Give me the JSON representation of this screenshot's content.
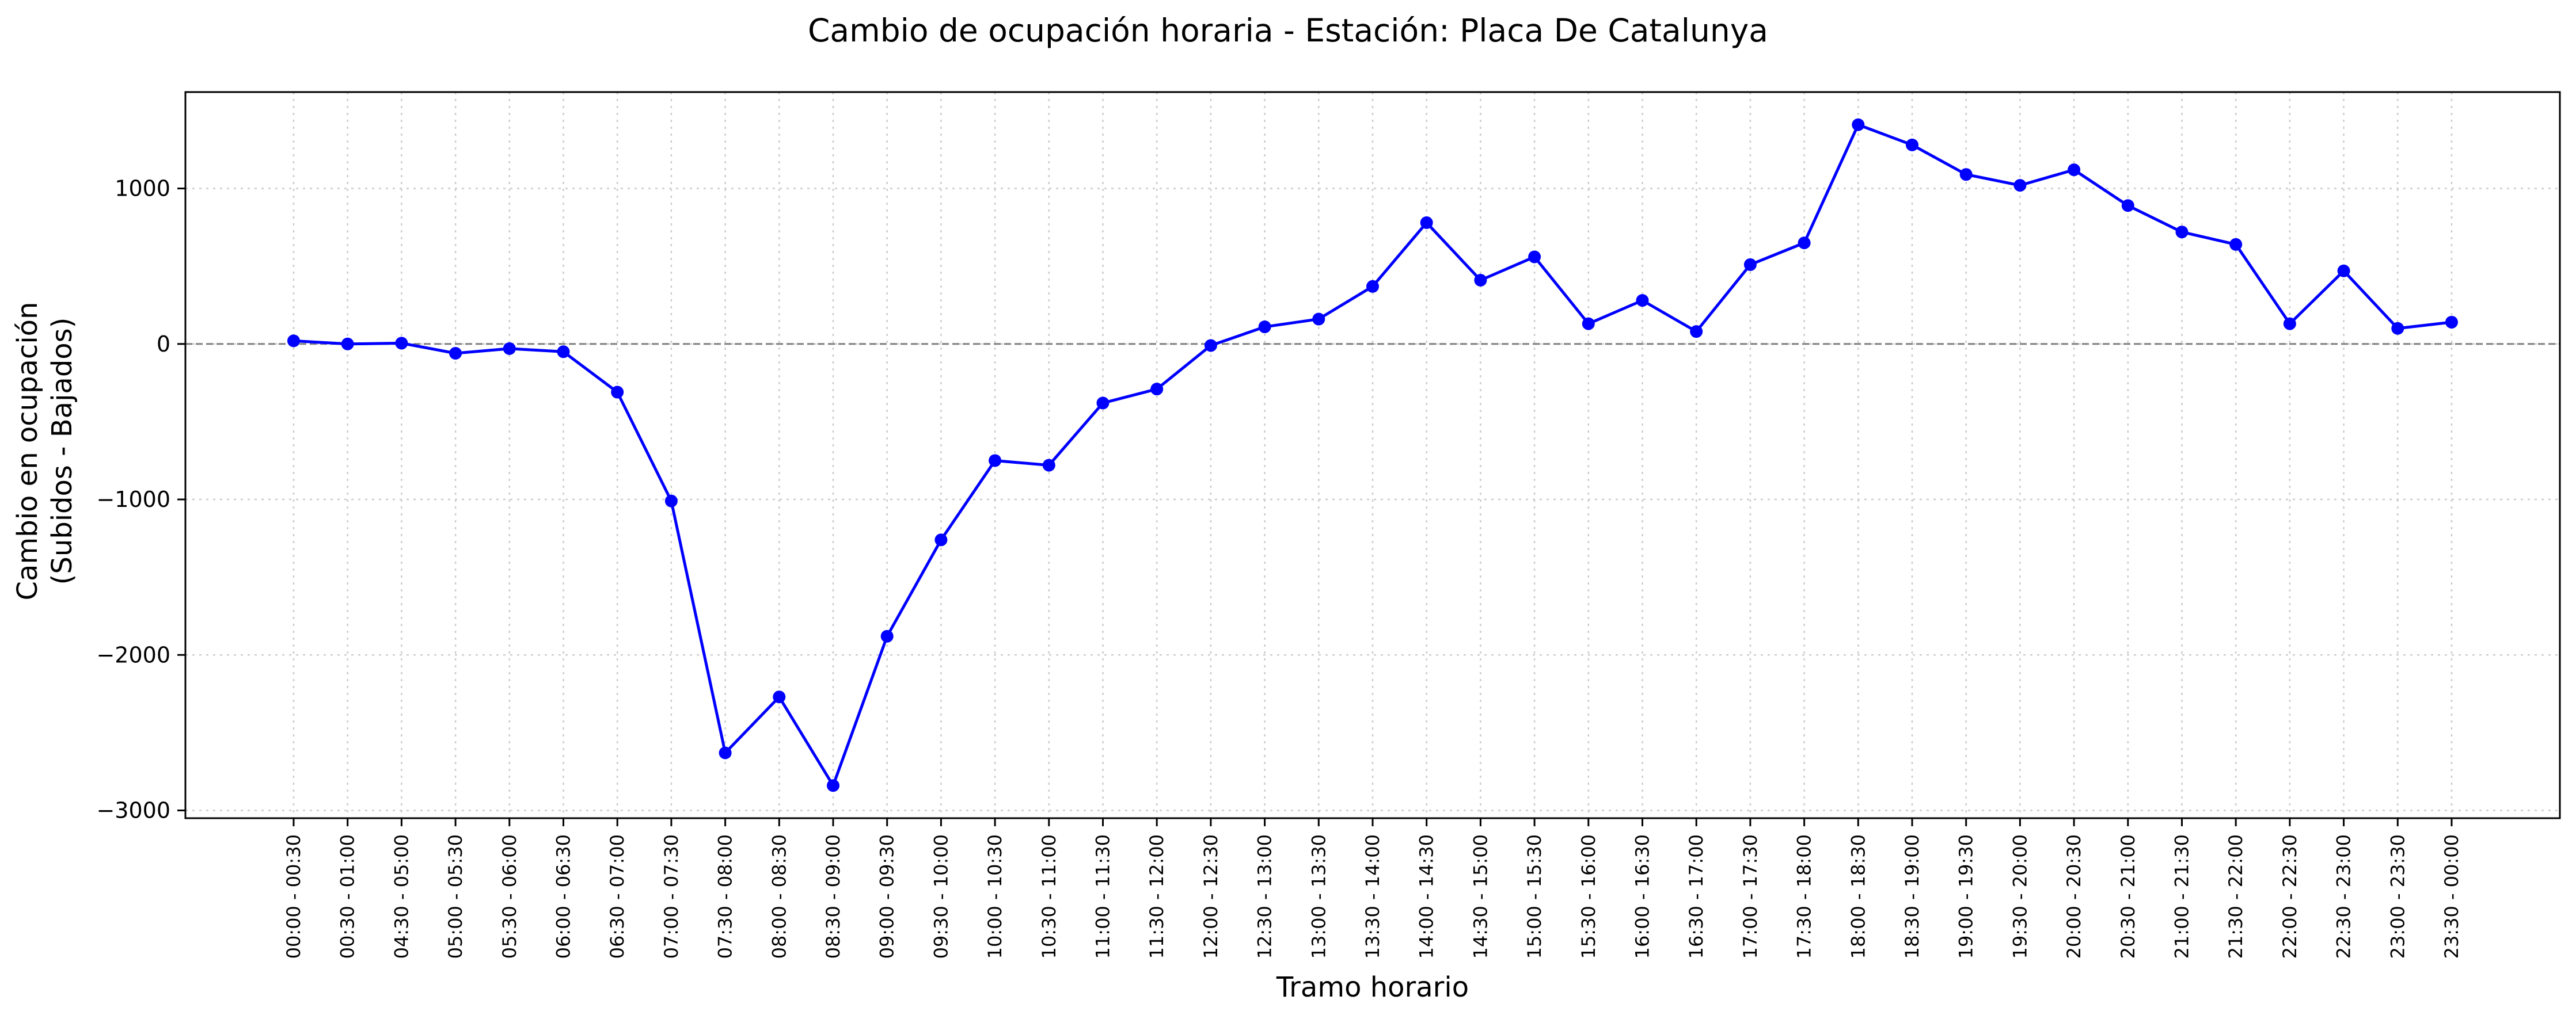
{
  "chart_data": {
    "type": "line",
    "title": "Cambio de ocupación horaria - Estación: Placa De Catalunya",
    "xlabel": "Tramo horario",
    "ylabel_lines": [
      "Cambio en ocupación",
      "(Subidos - Bajados)"
    ],
    "categories": [
      "00:00 - 00:30",
      "00:30 - 01:00",
      "04:30 - 05:00",
      "05:00 - 05:30",
      "05:30 - 06:00",
      "06:00 - 06:30",
      "06:30 - 07:00",
      "07:00 - 07:30",
      "07:30 - 08:00",
      "08:00 - 08:30",
      "08:30 - 09:00",
      "09:00 - 09:30",
      "09:30 - 10:00",
      "10:00 - 10:30",
      "10:30 - 11:00",
      "11:00 - 11:30",
      "11:30 - 12:00",
      "12:00 - 12:30",
      "12:30 - 13:00",
      "13:00 - 13:30",
      "13:30 - 14:00",
      "14:00 - 14:30",
      "14:30 - 15:00",
      "15:00 - 15:30",
      "15:30 - 16:00",
      "16:00 - 16:30",
      "16:30 - 17:00",
      "17:00 - 17:30",
      "17:30 - 18:00",
      "18:00 - 18:30",
      "18:30 - 19:00",
      "19:00 - 19:30",
      "19:30 - 20:00",
      "20:00 - 20:30",
      "20:30 - 21:00",
      "21:00 - 21:30",
      "21:30 - 22:00",
      "22:00 - 22:30",
      "22:30 - 23:00",
      "23:00 - 23:30",
      "23:30 - 00:00"
    ],
    "values": [
      20,
      0,
      5,
      -60,
      -30,
      -50,
      -310,
      -1010,
      -2630,
      -2270,
      -2840,
      -1880,
      -1260,
      -750,
      -780,
      -380,
      -290,
      -10,
      110,
      160,
      370,
      780,
      410,
      560,
      130,
      280,
      80,
      510,
      650,
      1410,
      1280,
      1090,
      1020,
      1120,
      890,
      720,
      640,
      130,
      470,
      100,
      140
    ],
    "ylim": [
      -3050,
      1620
    ],
    "yticks": [
      1000,
      0,
      -1000,
      -2000,
      -3000
    ],
    "ytick_labels": [
      "1000",
      "0",
      "−1000",
      "−2000",
      "−3000"
    ],
    "reference_line": 0,
    "grid": true,
    "line_color": "#0000ff",
    "reference_color": "#808080",
    "grid_color": "#cccccc"
  }
}
